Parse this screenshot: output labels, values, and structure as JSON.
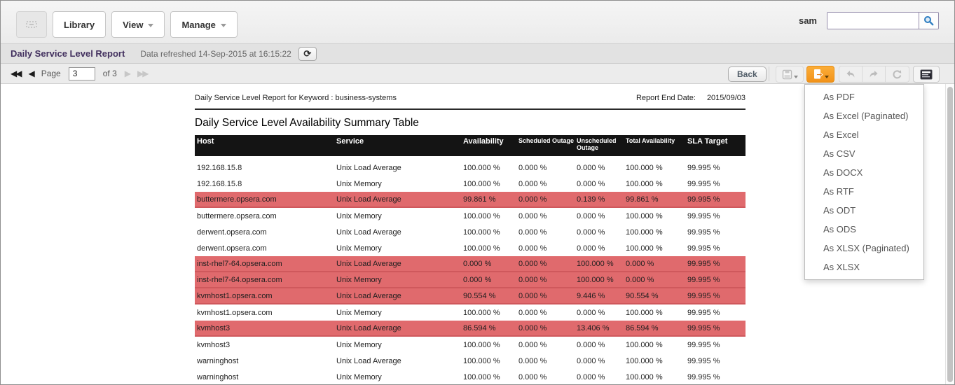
{
  "topbar": {
    "library_label": "Library",
    "view_label": "View",
    "manage_label": "Manage",
    "username": "sam",
    "search_value": "",
    "search_placeholder": ""
  },
  "report_bar": {
    "title": "Daily Service Level Report",
    "refreshed_text": "Data refreshed 14-Sep-2015 at 16:15:22"
  },
  "pagination": {
    "page_label": "Page",
    "page_value": "3",
    "of_label": "of 3",
    "back_label": "Back"
  },
  "icons": {
    "home": "grid",
    "search": "magnifier",
    "refresh": "circular-arrows",
    "refresh_glyph": "⟳",
    "first_page": "◀◀",
    "prev_page": "◀",
    "next_page": "▶",
    "last_page": "▶▶",
    "save": "floppy-disk",
    "export": "document-with-arrow",
    "undo": "curved-arrow-left",
    "redo": "curved-arrow-right",
    "revert": "circular-arrow",
    "report_settings": "report-panel"
  },
  "export_menu": {
    "items": [
      "As PDF",
      "As Excel (Paginated)",
      "As Excel",
      "As CSV",
      "As DOCX",
      "As RTF",
      "As ODT",
      "As ODS",
      "As XLSX (Paginated)",
      "As XLSX"
    ]
  },
  "report": {
    "keyword_line": "Daily Service Level Report for Keyword : business-systems",
    "end_date_label": "Report End Date:",
    "end_date_value": "2015/09/03",
    "table_title": "Daily Service Level Availability Summary Table",
    "columns": [
      "Host",
      "Service",
      "Availability",
      "Scheduled Outage",
      "Unscheduled Outage",
      "Total Availability",
      "SLA Target"
    ],
    "rows": [
      {
        "host": "192.168.15.8",
        "service": "Unix Load Average",
        "availability": "100.000 %",
        "scheduled_outage": "0.000 %",
        "unscheduled_outage": "0.000 %",
        "total_availability": "100.000 %",
        "sla_target": "99.995 %",
        "highlighted": false
      },
      {
        "host": "192.168.15.8",
        "service": "Unix Memory",
        "availability": "100.000 %",
        "scheduled_outage": "0.000 %",
        "unscheduled_outage": "0.000 %",
        "total_availability": "100.000 %",
        "sla_target": "99.995 %",
        "highlighted": false
      },
      {
        "host": "buttermere.opsera.com",
        "service": "Unix Load Average",
        "availability": "99.861 %",
        "scheduled_outage": "0.000 %",
        "unscheduled_outage": "0.139 %",
        "total_availability": "99.861 %",
        "sla_target": "99.995 %",
        "highlighted": true
      },
      {
        "host": "buttermere.opsera.com",
        "service": "Unix Memory",
        "availability": "100.000 %",
        "scheduled_outage": "0.000 %",
        "unscheduled_outage": "0.000 %",
        "total_availability": "100.000 %",
        "sla_target": "99.995 %",
        "highlighted": false
      },
      {
        "host": "derwent.opsera.com",
        "service": "Unix Load Average",
        "availability": "100.000 %",
        "scheduled_outage": "0.000 %",
        "unscheduled_outage": "0.000 %",
        "total_availability": "100.000 %",
        "sla_target": "99.995 %",
        "highlighted": false
      },
      {
        "host": "derwent.opsera.com",
        "service": "Unix Memory",
        "availability": "100.000 %",
        "scheduled_outage": "0.000 %",
        "unscheduled_outage": "0.000 %",
        "total_availability": "100.000 %",
        "sla_target": "99.995 %",
        "highlighted": false
      },
      {
        "host": "inst-rhel7-64.opsera.com",
        "service": "Unix Load Average",
        "availability": "0.000 %",
        "scheduled_outage": "0.000 %",
        "unscheduled_outage": "100.000 %",
        "total_availability": "0.000 %",
        "sla_target": "99.995 %",
        "highlighted": true
      },
      {
        "host": "inst-rhel7-64.opsera.com",
        "service": "Unix Memory",
        "availability": "0.000 %",
        "scheduled_outage": "0.000 %",
        "unscheduled_outage": "100.000 %",
        "total_availability": "0.000 %",
        "sla_target": "99.995 %",
        "highlighted": true
      },
      {
        "host": "kvmhost1.opsera.com",
        "service": "Unix Load Average",
        "availability": "90.554 %",
        "scheduled_outage": "0.000 %",
        "unscheduled_outage": "9.446 %",
        "total_availability": "90.554 %",
        "sla_target": "99.995 %",
        "highlighted": true
      },
      {
        "host": "kvmhost1.opsera.com",
        "service": "Unix Memory",
        "availability": "100.000 %",
        "scheduled_outage": "0.000 %",
        "unscheduled_outage": "0.000 %",
        "total_availability": "100.000 %",
        "sla_target": "99.995 %",
        "highlighted": false
      },
      {
        "host": "kvmhost3",
        "service": "Unix Load Average",
        "availability": "86.594 %",
        "scheduled_outage": "0.000 %",
        "unscheduled_outage": "13.406 %",
        "total_availability": "86.594 %",
        "sla_target": "99.995 %",
        "highlighted": true
      },
      {
        "host": "kvmhost3",
        "service": "Unix Memory",
        "availability": "100.000 %",
        "scheduled_outage": "0.000 %",
        "unscheduled_outage": "0.000 %",
        "total_availability": "100.000 %",
        "sla_target": "99.995 %",
        "highlighted": false
      },
      {
        "host": "warninghost",
        "service": "Unix Load Average",
        "availability": "100.000 %",
        "scheduled_outage": "0.000 %",
        "unscheduled_outage": "0.000 %",
        "total_availability": "100.000 %",
        "sla_target": "99.995 %",
        "highlighted": false
      },
      {
        "host": "warninghost",
        "service": "Unix Memory",
        "availability": "100.000 %",
        "scheduled_outage": "0.000 %",
        "unscheduled_outage": "0.000 %",
        "total_availability": "100.000 %",
        "sla_target": "99.995 %",
        "highlighted": false
      }
    ]
  },
  "colors": {
    "highlight_row": "#e06a6d",
    "highlight_border": "#cf585c",
    "table_header_bg": "#141414",
    "accent_orange": "#f2931a",
    "title_purple": "#43315f",
    "search_icon_blue": "#2d7dc1"
  }
}
